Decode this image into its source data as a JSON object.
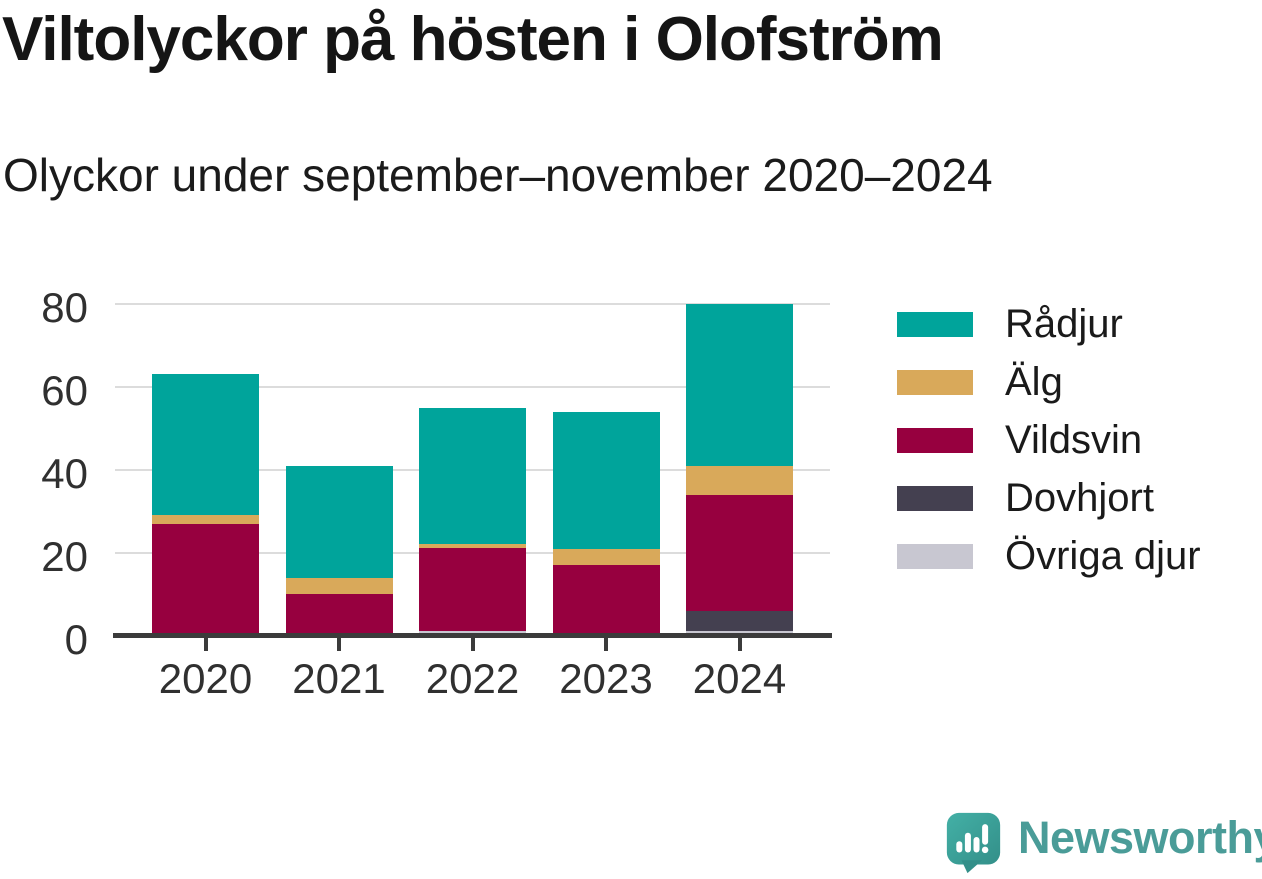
{
  "header": {
    "title": "Viltolyckor på hösten i Olofström",
    "subtitle": "Olyckor under september–november 2020–2024"
  },
  "chart_data": {
    "type": "bar",
    "stacked": true,
    "title": "Viltolyckor på hösten i Olofström",
    "subtitle": "Olyckor under september–november 2020–2024",
    "categories": [
      "2020",
      "2021",
      "2022",
      "2023",
      "2024"
    ],
    "series": [
      {
        "name": "Rådjur",
        "color": "#00A49B",
        "values": [
          34,
          27,
          33,
          33,
          39
        ]
      },
      {
        "name": "Älg",
        "color": "#D9A95A",
        "values": [
          2,
          4,
          1,
          4,
          7
        ]
      },
      {
        "name": "Vildsvin",
        "color": "#97003F",
        "values": [
          27,
          10,
          20,
          17,
          28
        ]
      },
      {
        "name": "Dovhjort",
        "color": "#444050",
        "values": [
          0,
          0,
          0,
          0,
          5
        ]
      },
      {
        "name": "Övriga djur",
        "color": "#C8C7D1",
        "values": [
          0,
          0,
          1,
          0,
          1
        ]
      }
    ],
    "totals": [
      63,
      41,
      55,
      54,
      80
    ],
    "xlabel": "",
    "ylabel": "",
    "ylim": [
      0,
      80
    ],
    "yticks": [
      0,
      20,
      40,
      60,
      80
    ],
    "grid": "horizontal",
    "legend_position": "right",
    "stack_order_bottom_to_top": [
      "Övriga djur",
      "Dovhjort",
      "Vildsvin",
      "Älg",
      "Rådjur"
    ]
  },
  "colors": {
    "axis": "#3b3b3b",
    "gridline": "#dcdcdc",
    "tick_text": "#303030",
    "brand_teal": "#4a9c98"
  },
  "footer": {
    "brand": "Newsworthy"
  }
}
